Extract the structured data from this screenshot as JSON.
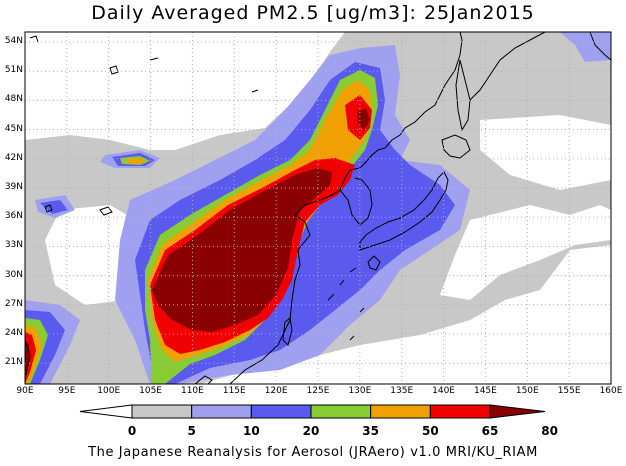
{
  "title": "Daily Averaged PM2.5 [ug/m3]: 25Jan2015",
  "credit": "The Japanese Reanalysis for Aerosol (JRAero) v1.0 MRI/KU_RIAM",
  "lat_labels": [
    "54N",
    "51N",
    "48N",
    "45N",
    "42N",
    "39N",
    "36N",
    "33N",
    "30N",
    "27N",
    "24N",
    "21N"
  ],
  "lon_labels": [
    "90E",
    "95E",
    "100E",
    "105E",
    "110E",
    "115E",
    "120E",
    "125E",
    "130E",
    "135E",
    "140E",
    "145E",
    "150E",
    "155E",
    "160E"
  ],
  "legend": {
    "levels": [
      "0",
      "5",
      "10",
      "20",
      "35",
      "50",
      "65",
      "80"
    ],
    "colors": [
      "#ffffff",
      "#c8c8c8",
      "#a0a0f0",
      "#5a5aee",
      "#88cc33",
      "#f0a000",
      "#f00000",
      "#8a0000"
    ]
  },
  "palette": {
    "ocean": "#ffffff",
    "coast": "#000000",
    "grid": "#b0b0b0"
  }
}
